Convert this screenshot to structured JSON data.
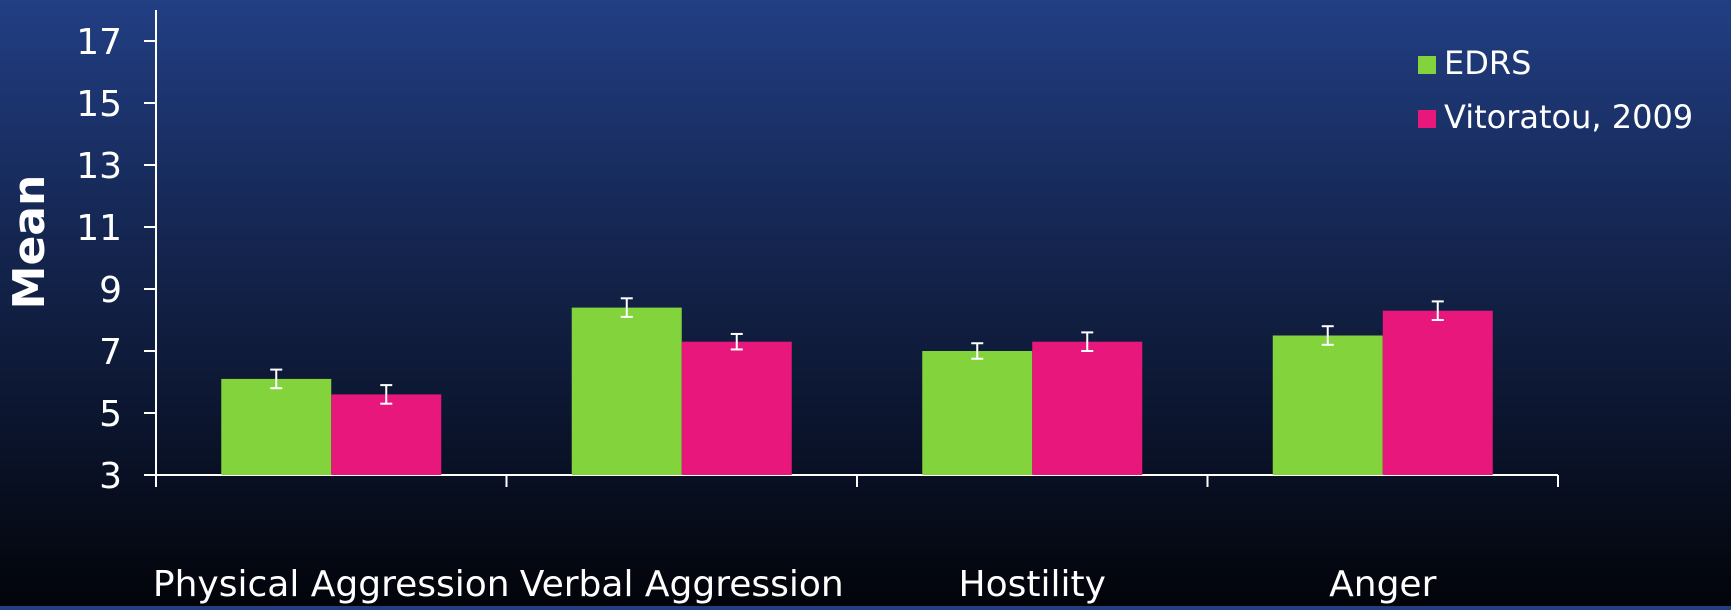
{
  "chart_data": {
    "type": "bar",
    "title": "",
    "xlabel": "",
    "ylabel": "Mean",
    "ylim": [
      3,
      18
    ],
    "yticks": [
      3,
      5,
      7,
      9,
      11,
      13,
      15,
      17
    ],
    "categories": [
      "Physical Aggression",
      "Verbal Aggression",
      "Hostility",
      "Anger"
    ],
    "series": [
      {
        "name": "EDRS",
        "color": "#82d33c",
        "values": [
          6.1,
          8.4,
          7.0,
          7.5
        ],
        "error": [
          0.3,
          0.3,
          0.25,
          0.3
        ]
      },
      {
        "name": "Vitoratou, 2009",
        "color": "#e8177b",
        "values": [
          5.6,
          7.3,
          7.3,
          8.3
        ],
        "error": [
          0.3,
          0.25,
          0.3,
          0.3
        ]
      }
    ],
    "legend_position": "top-right",
    "grid": false,
    "error_bars": true
  },
  "colors": {
    "axis": "#ffffff",
    "text": "#ffffff",
    "error_bar": "#ffffff"
  }
}
